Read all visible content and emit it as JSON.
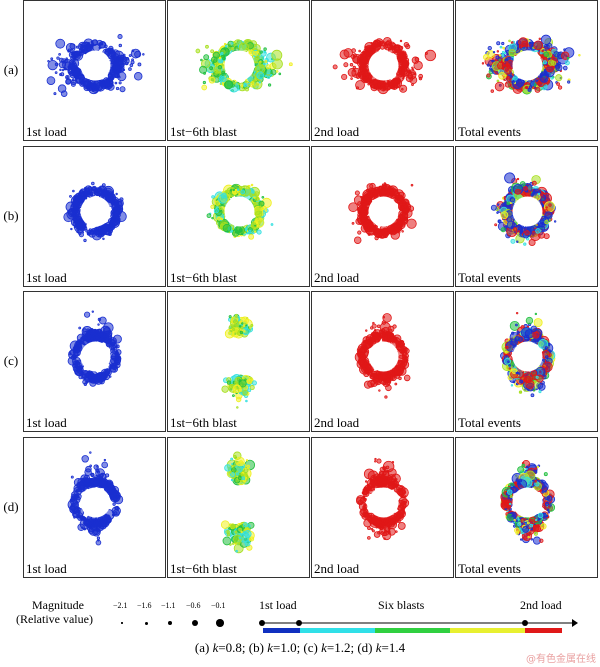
{
  "rows": [
    {
      "label": "(a)"
    },
    {
      "label": "(b)"
    },
    {
      "label": "(c)"
    },
    {
      "label": "(d)"
    }
  ],
  "columns": [
    {
      "label": "1st load",
      "palette": "blue"
    },
    {
      "label": "1st−6th blast",
      "palette": "blast"
    },
    {
      "label": "2nd load",
      "palette": "red"
    },
    {
      "label": "Total events",
      "palette": "all"
    }
  ],
  "colors": {
    "first_load": "#1a2fd0",
    "blast": [
      "#33e0e0",
      "#22c040",
      "#a8e020",
      "#f0f020"
    ],
    "second_load": "#e01818"
  },
  "legend": {
    "magnitude_title": "Magnitude",
    "magnitude_subtitle": "(Relative value)",
    "magnitude_values": [
      "−2.1",
      "−1.6",
      "−1.1",
      "−0.6",
      "−0.1"
    ],
    "timeline": {
      "start": "1st load",
      "middle": "Six blasts",
      "end": "2nd load"
    }
  },
  "caption": {
    "a": "(a) ",
    "k1": "k",
    "v1": "=0.8; (b) ",
    "k2": "k",
    "v2": "=1.0; (c) ",
    "k3": "k",
    "v3": "=1.2; (d) ",
    "k4": "k",
    "v4": "=1.4"
  },
  "watermark": "@有色金属在线"
}
